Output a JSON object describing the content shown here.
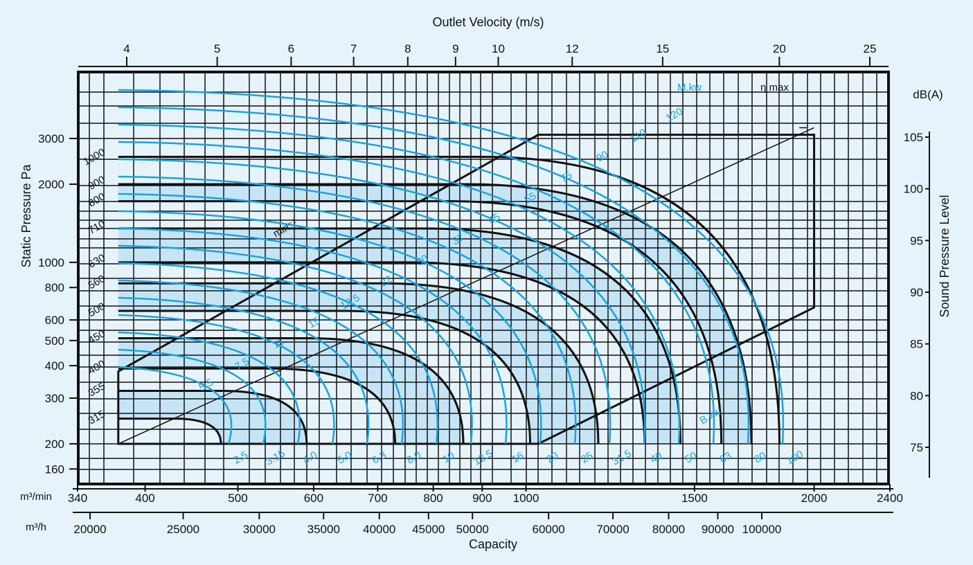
{
  "chart_data": {
    "type": "line",
    "title": "Outlet Velocity (m/s)",
    "xlabel": "Capacity",
    "ylabel": "Static Pressure Pa",
    "y2label": "Sound Pressure Level",
    "y2unit": "dB(A)",
    "log_scales": true,
    "colors": {
      "background": "#e6f3fb",
      "grid": "#111111",
      "power": "#1aa3dc",
      "band": "#b9e0f5"
    },
    "velocity_ticks": [
      "4",
      "5",
      "6",
      "7",
      "8",
      "9",
      "10",
      "12",
      "15",
      "20",
      "25"
    ],
    "pressure_ticks": [
      "3000",
      "2000",
      "1000",
      "800",
      "600",
      "500",
      "400",
      "300",
      "200",
      "160"
    ],
    "spl_ticks": [
      "105",
      "100",
      "95",
      "90",
      "85",
      "80",
      "75"
    ],
    "m3min_label": "m³/min",
    "m3min_ticks": [
      "340",
      "400",
      "500",
      "600",
      "700",
      "800",
      "900",
      "1000",
      "1500",
      "2000",
      "2400"
    ],
    "m3h_label": "m³/h",
    "m3h_ticks": [
      "20000",
      "25000",
      "30000",
      "35000",
      "40000",
      "45000",
      "50000",
      "60000",
      "70000",
      "80000",
      "90000",
      "100000"
    ],
    "speed_unit": "min⁻¹",
    "eta_label": "η max",
    "mkw_label": "M.kw",
    "bkw_label": "B.kw",
    "speed_curves": [
      {
        "label": "315",
        "pressure": 250,
        "flow_end": 480
      },
      {
        "label": "355",
        "pressure": 320,
        "flow_end": 590
      },
      {
        "label": "400",
        "pressure": 390,
        "flow_end": 730
      },
      {
        "label": "450",
        "pressure": 510,
        "flow_end": 860
      },
      {
        "label": "500",
        "pressure": 650,
        "flow_end": 1010
      },
      {
        "label": "560",
        "pressure": 830,
        "flow_end": 1190
      },
      {
        "label": "630",
        "pressure": 1000,
        "flow_end": 1330
      },
      {
        "label": "710",
        "pressure": 1350,
        "flow_end": 1450
      },
      {
        "label": "800",
        "pressure": 1720,
        "flow_end": 1600
      },
      {
        "label": "900",
        "pressure": 2000,
        "flow_end": 1720
      },
      {
        "label": "1000",
        "pressure": 2550,
        "flow_end": 1840
      }
    ],
    "power_labels_bottom": [
      "2.5",
      "3.15",
      "4.0",
      "5.0",
      "6.3",
      "8.0",
      "10",
      "12.5",
      "16",
      "20",
      "25",
      "31.5",
      "40",
      "50",
      "63",
      "80",
      "100"
    ],
    "power_labels_top": [
      "5.5",
      "7.5",
      "11",
      "15",
      "18.5",
      "22",
      "30",
      "37",
      "45",
      "55",
      "75",
      "90",
      "110",
      "120"
    ]
  }
}
